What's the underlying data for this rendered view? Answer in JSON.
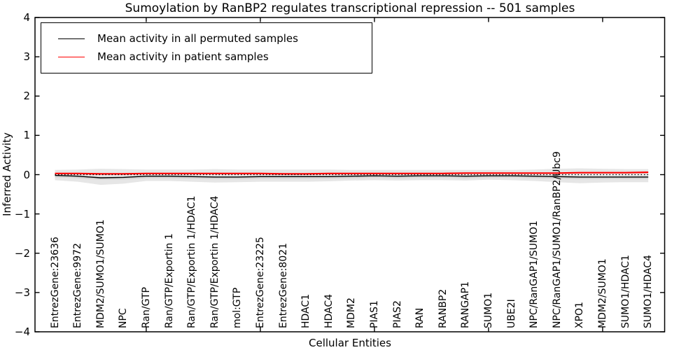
{
  "figure": {
    "background": "#ffffff"
  },
  "legend": {
    "entries": [
      {
        "label": "Mean activity in all permuted samples",
        "color": "#000000"
      },
      {
        "label": "Mean activity in patient samples",
        "color": "#ff0000"
      }
    ]
  },
  "chart_data": {
    "type": "line",
    "title": "Sumoylation by RanBP2 regulates transcriptional repression -- 501 samples",
    "xlabel": "Cellular Entities",
    "ylabel": "Inferred Activity",
    "ylim": [
      -4,
      4
    ],
    "yticks": [
      4,
      3,
      2,
      1,
      0,
      -1,
      -2,
      -3,
      -4
    ],
    "ytick_labels": [
      "4",
      "3",
      "2",
      "1",
      "0",
      "−1",
      "−2",
      "−3",
      "−4"
    ],
    "xtick_marks_at": [
      4,
      9,
      14,
      19,
      24
    ],
    "grid": false,
    "legend_position": "upper left",
    "categories": [
      "EntrezGene:23636",
      "EntrezGene:9972",
      "MDM2/SUMO1/SUMO1",
      "NPC",
      "Ran/GTP",
      "Ran/GTP/Exportin 1",
      "Ran/GTP/Exportin 1/HDAC1",
      "Ran/GTP/Exportin 1/HDAC4",
      "mol:GTP",
      "EntrezGene:23225",
      "EntrezGene:8021",
      "HDAC1",
      "HDAC4",
      "MDM2",
      "PIAS1",
      "PIAS2",
      "RAN",
      "RANBP2",
      "RANGAP1",
      "SUMO1",
      "UBE2I",
      "NPC/RanGAP1/SUMO1",
      "NPC/RanGAP1/SUMO1/RanBP2/Ubc9",
      "XPO1",
      "MDM2/SUMO1",
      "SUMO1/HDAC1",
      "SUMO1/HDAC4"
    ],
    "series": [
      {
        "name": "Mean activity in all permuted samples",
        "color": "#000000",
        "style": "solid",
        "values": [
          -0.02,
          -0.04,
          -0.08,
          -0.07,
          -0.04,
          -0.04,
          -0.05,
          -0.06,
          -0.06,
          -0.05,
          -0.05,
          -0.05,
          -0.05,
          -0.04,
          -0.03,
          -0.04,
          -0.03,
          -0.03,
          -0.04,
          -0.03,
          -0.03,
          -0.04,
          -0.05,
          -0.06,
          -0.06,
          -0.06,
          -0.06
        ]
      },
      {
        "name": "Mean activity in patient samples",
        "color": "#ff0000",
        "style": "solid",
        "values": [
          0.03,
          0.03,
          0.02,
          0.02,
          0.03,
          0.03,
          0.03,
          0.03,
          0.03,
          0.03,
          0.02,
          0.02,
          0.03,
          0.03,
          0.03,
          0.03,
          0.03,
          0.03,
          0.04,
          0.04,
          0.04,
          0.04,
          0.04,
          0.05,
          0.05,
          0.05,
          0.06
        ]
      }
    ],
    "band": {
      "color": "#e6e6e6",
      "inner_color": "#d5d5d5",
      "upper": [
        0.12,
        0.13,
        0.15,
        0.14,
        0.13,
        0.13,
        0.13,
        0.14,
        0.13,
        0.13,
        0.13,
        0.13,
        0.13,
        0.12,
        0.12,
        0.12,
        0.12,
        0.12,
        0.12,
        0.12,
        0.12,
        0.13,
        0.15,
        0.16,
        0.15,
        0.14,
        0.14
      ],
      "lower": [
        -0.14,
        -0.18,
        -0.26,
        -0.23,
        -0.16,
        -0.16,
        -0.18,
        -0.2,
        -0.19,
        -0.18,
        -0.18,
        -0.18,
        -0.17,
        -0.15,
        -0.14,
        -0.15,
        -0.14,
        -0.14,
        -0.15,
        -0.13,
        -0.14,
        -0.16,
        -0.19,
        -0.22,
        -0.2,
        -0.19,
        -0.19
      ]
    },
    "zero_line": {
      "y": 0,
      "style": "dotted",
      "color": "#000000"
    }
  }
}
